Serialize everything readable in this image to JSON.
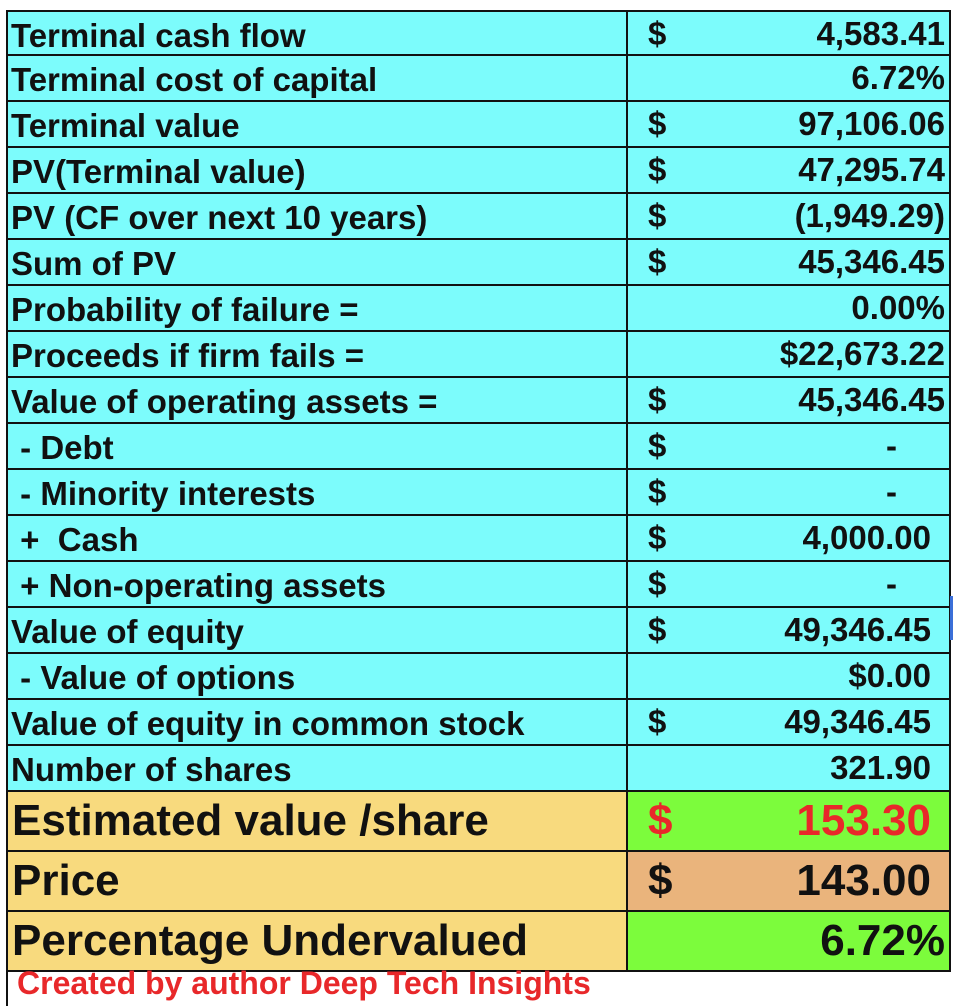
{
  "rows": [
    {
      "label": "Terminal cash flow",
      "currency": "$",
      "value": "4,583.41"
    },
    {
      "label": "Terminal cost of capital",
      "currency": "",
      "value": "6.72%"
    },
    {
      "label": "Terminal value",
      "currency": "$",
      "value": "97,106.06"
    },
    {
      "label": "PV(Terminal value)",
      "currency": "$",
      "value": "47,295.74"
    },
    {
      "label": "PV (CF over next 10 years)",
      "currency": "$",
      "value": "(1,949.29)"
    },
    {
      "label": "Sum of PV",
      "currency": "$",
      "value": "45,346.45"
    },
    {
      "label": "Probability of failure =",
      "currency": "",
      "value": "0.00%"
    },
    {
      "label": "Proceeds if firm fails =",
      "currency": "",
      "value": "$22,673.22"
    },
    {
      "label": "Value of operating assets =",
      "currency": "$",
      "value": "45,346.45"
    },
    {
      "label": " - Debt",
      "currency": "$",
      "value": "-"
    },
    {
      "label": " - Minority interests",
      "currency": "$",
      "value": "-"
    },
    {
      "label": " +  Cash",
      "currency": "$",
      "value": "4,000.00"
    },
    {
      "label": " + Non-operating assets",
      "currency": "$",
      "value": "-"
    },
    {
      "label": "Value of equity",
      "currency": "$",
      "value": "49,346.45"
    },
    {
      "label": " - Value of options",
      "currency": "",
      "value": "$0.00"
    },
    {
      "label": "Value of equity in common stock",
      "currency": "$",
      "value": "49,346.45"
    },
    {
      "label": "Number of shares",
      "currency": "",
      "value": "321.90"
    }
  ],
  "summary": {
    "estimated": {
      "label": "Estimated value /share",
      "currency": "$",
      "value": "153.30"
    },
    "price": {
      "label": "Price",
      "currency": "$",
      "value": "143.00"
    },
    "undervalued": {
      "label": "Percentage Undervalued",
      "currency": "",
      "value": "6.72%"
    }
  },
  "footer": {
    "credit": "Created by author Deep Tech Insights"
  },
  "colors": {
    "cyan": "#7cfcfc",
    "yellow": "#f8da7e",
    "green": "#7cfc3c",
    "tan": "#eab47c",
    "red": "#e8282a"
  }
}
